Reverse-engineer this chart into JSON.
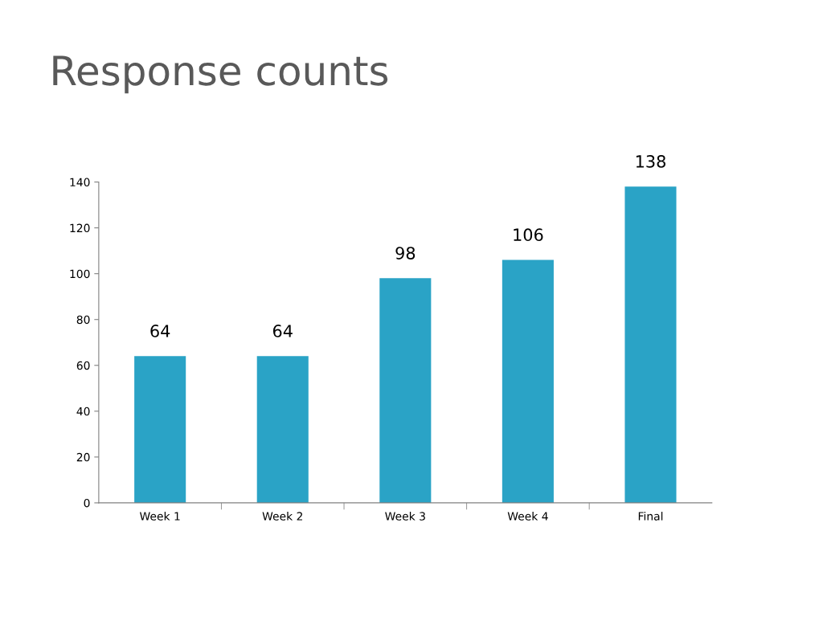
{
  "chart_data": {
    "type": "bar",
    "title": "Response counts",
    "categories": [
      "Week 1",
      "Week 2",
      "Week 3",
      "Week 4",
      "Final"
    ],
    "values": [
      64,
      64,
      98,
      106,
      138
    ],
    "color": "#2aa3c6",
    "ylim": [
      0,
      140
    ],
    "yticks": [
      0,
      20,
      40,
      60,
      80,
      100,
      120,
      140
    ],
    "data_labels": true,
    "grid": false,
    "legend": false
  }
}
